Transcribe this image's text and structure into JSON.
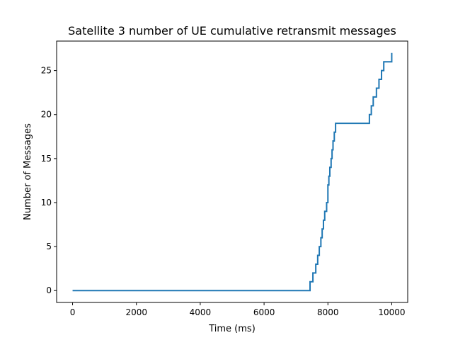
{
  "chart_data": {
    "type": "line",
    "title": "Satellite 3 number of UE cumulative retransmit messages",
    "xlabel": "Time (ms)",
    "ylabel": "Number of Messages",
    "xlim": [
      -500,
      10500
    ],
    "ylim": [
      -1.35,
      28.35
    ],
    "xticks": [
      0,
      2000,
      4000,
      6000,
      8000,
      10000
    ],
    "yticks": [
      0,
      5,
      10,
      15,
      20,
      25
    ],
    "grid": false,
    "step": "post",
    "color": "#1f77b4",
    "series": [
      {
        "x": [
          0,
          7440,
          7530,
          7620,
          7680,
          7730,
          7780,
          7820,
          7860,
          7900,
          7960,
          8000,
          8030,
          8060,
          8100,
          8130,
          8160,
          8200,
          8240,
          9300,
          9360,
          9420,
          9520,
          9600,
          9680,
          9750,
          10000
        ],
        "y": [
          0,
          1,
          2,
          3,
          4,
          5,
          6,
          7,
          8,
          9,
          10,
          12,
          13,
          14,
          15,
          16,
          17,
          18,
          19,
          20,
          21,
          22,
          23,
          24,
          25,
          26,
          27
        ]
      }
    ]
  }
}
